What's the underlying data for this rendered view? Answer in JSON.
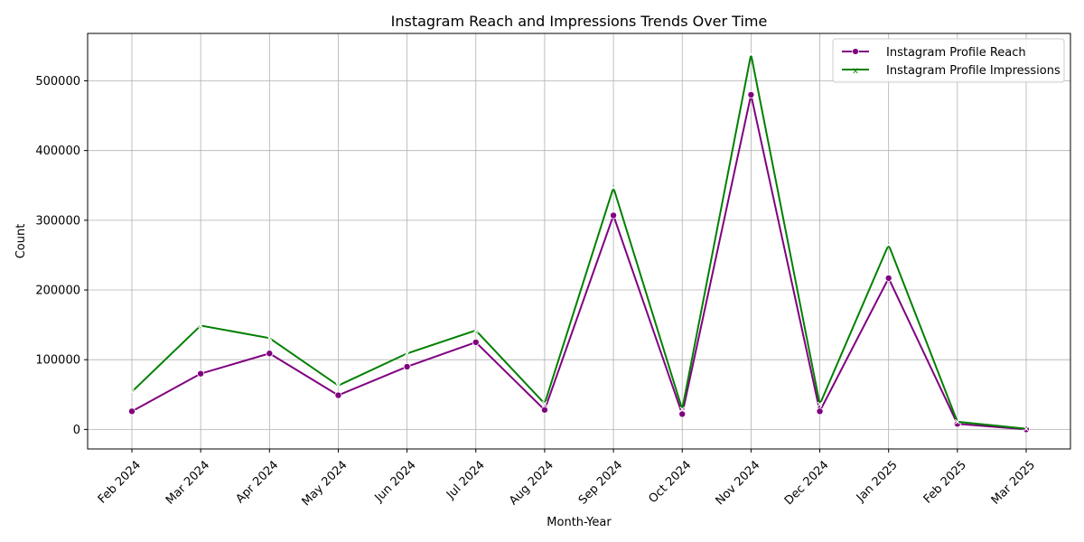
{
  "chart_data": {
    "type": "line",
    "title": "Instagram Reach and Impressions Trends Over Time",
    "xlabel": "Month-Year",
    "ylabel": "Count",
    "categories": [
      "Feb 2024",
      "Mar 2024",
      "Apr 2024",
      "May 2024",
      "Jun 2024",
      "Jul 2024",
      "Aug 2024",
      "Sep 2024",
      "Oct 2024",
      "Nov 2024",
      "Dec 2024",
      "Jan 2025",
      "Feb 2025",
      "Mar 2025"
    ],
    "ylim": [
      -28000,
      568000
    ],
    "yticks": [
      0,
      100000,
      200000,
      300000,
      400000,
      500000
    ],
    "grid": true,
    "legend_position": "top-right",
    "series": [
      {
        "name": "Instagram Profile Reach",
        "color": "#800080",
        "marker": "circle",
        "values": [
          26000,
          80000,
          109000,
          49000,
          90000,
          125000,
          28000,
          307000,
          22000,
          480000,
          26000,
          217000,
          8000,
          0
        ]
      },
      {
        "name": "Instagram Profile Impressions",
        "color": "#008000",
        "marker": "x",
        "values": [
          54000,
          149000,
          131000,
          63000,
          109000,
          142000,
          37000,
          347000,
          29000,
          538000,
          36000,
          265000,
          11000,
          1000
        ]
      }
    ]
  }
}
